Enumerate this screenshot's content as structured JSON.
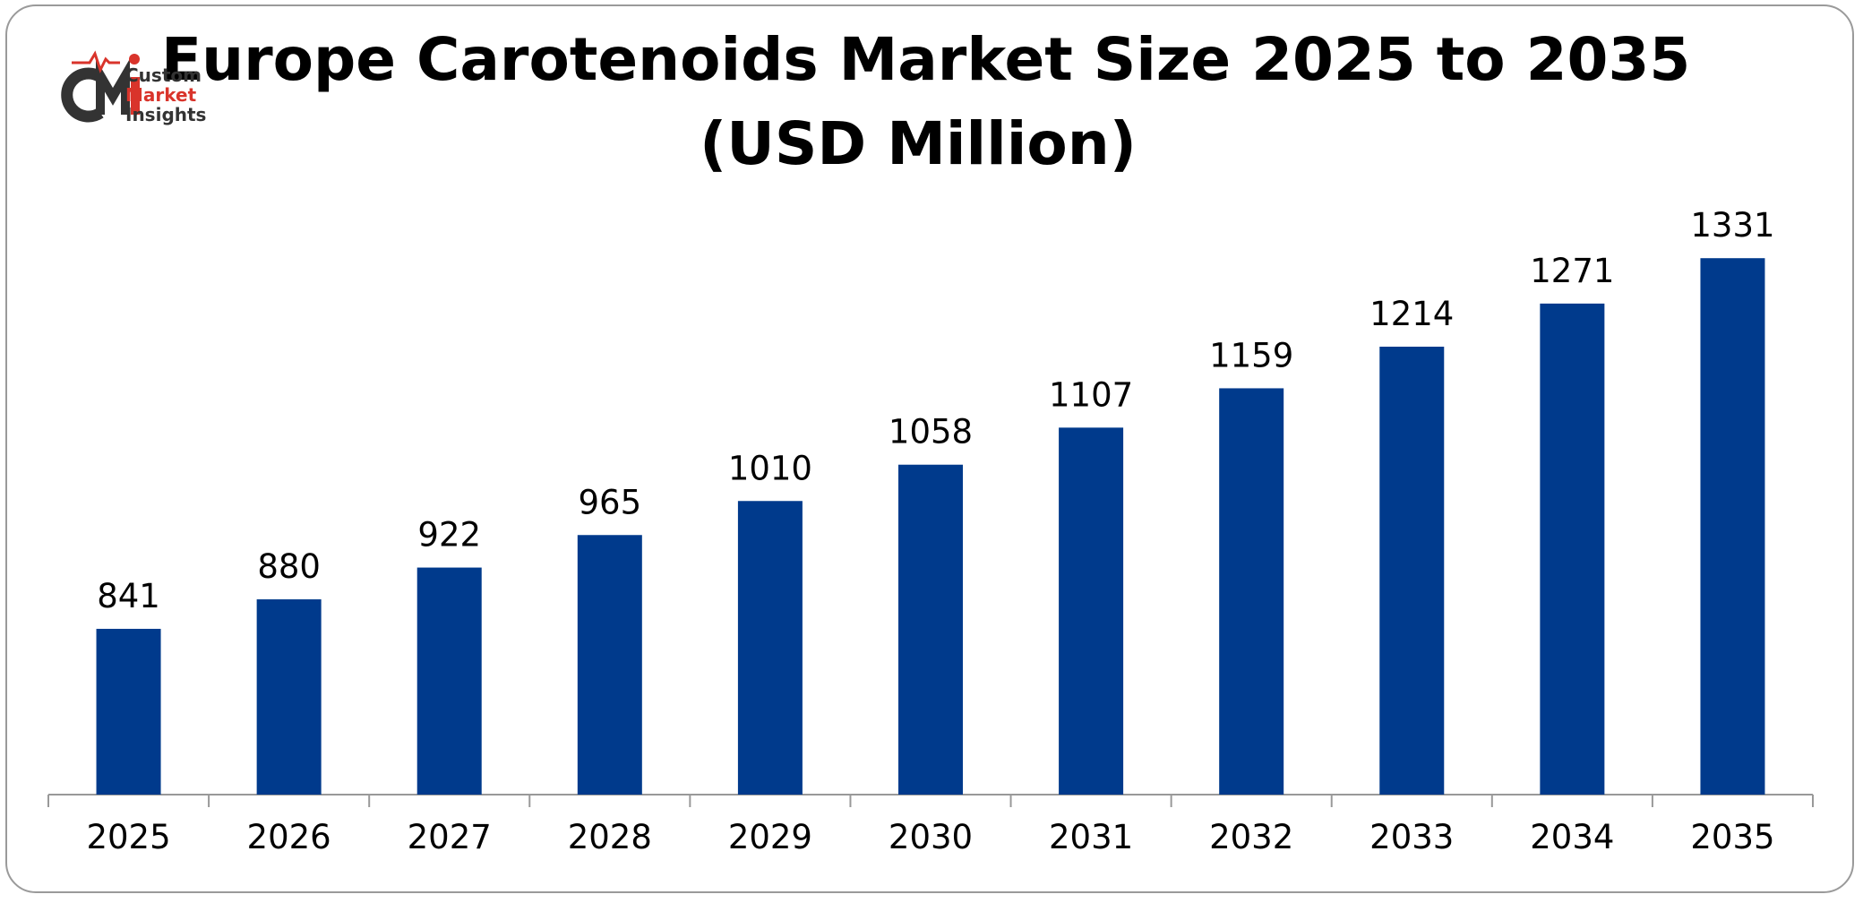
{
  "title_line1": "Europe Carotenoids Market Size 2025 to 2035",
  "title_line2": "(USD Million)",
  "logo": {
    "mark": "CMI",
    "line1": "Custom",
    "line2": "Market",
    "line3": "Insights"
  },
  "colors": {
    "bar": "#003a8c",
    "axis": "#999999",
    "logo_red": "#d9342b",
    "logo_dark": "#333333"
  },
  "chart_data": {
    "type": "bar",
    "title": "Europe Carotenoids Market Size 2025 to 2035 (USD Million)",
    "xlabel": "",
    "ylabel": "",
    "categories": [
      "2025",
      "2026",
      "2027",
      "2028",
      "2029",
      "2030",
      "2031",
      "2032",
      "2033",
      "2034",
      "2035"
    ],
    "values": [
      841,
      880,
      922,
      965,
      1010,
      1058,
      1107,
      1159,
      1214,
      1271,
      1331
    ],
    "data_labels": [
      "841",
      "880",
      "922",
      "965",
      "1010",
      "1058",
      "1107",
      "1159",
      "1214",
      "1271",
      "1331"
    ],
    "ylim": [
      0,
      1400
    ],
    "grid": false,
    "legend": "none"
  }
}
